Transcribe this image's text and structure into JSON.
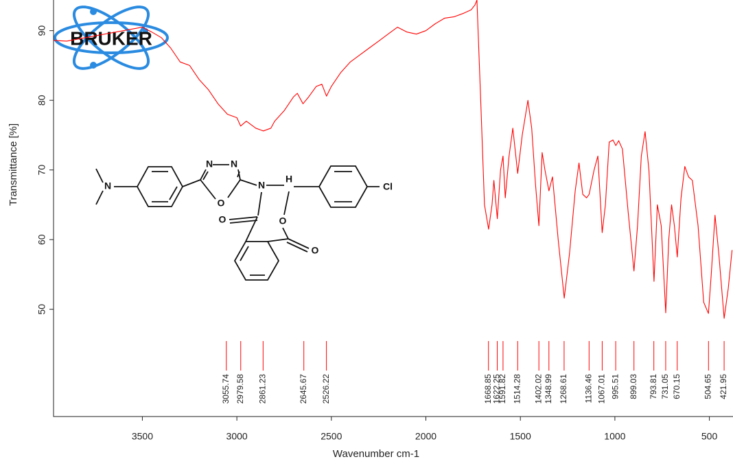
{
  "chart_data": {
    "type": "line",
    "logo": "BRUKER",
    "x_label": "Wavenumber cm-1",
    "y_label": "Transmittance [%]",
    "xlim": [
      3970,
      375
    ],
    "ylim": [
      34.6,
      94.4
    ],
    "xticks": [
      3500,
      3000,
      2500,
      2000,
      1500,
      1000,
      500
    ],
    "yticks": [
      50,
      60,
      70,
      80,
      90
    ],
    "color": "#ff0000",
    "x": [
      3970,
      3900,
      3800,
      3700,
      3600,
      3500,
      3450,
      3400,
      3350,
      3300,
      3250,
      3200,
      3150,
      3100,
      3050,
      3000,
      2980,
      2950,
      2900,
      2860,
      2820,
      2800,
      2750,
      2700,
      2680,
      2650,
      2620,
      2580,
      2550,
      2526,
      2500,
      2450,
      2400,
      2350,
      2300,
      2250,
      2200,
      2150,
      2100,
      2050,
      2000,
      1950,
      1900,
      1850,
      1800,
      1760,
      1740,
      1730,
      1710,
      1690,
      1668,
      1650,
      1640,
      1622,
      1605,
      1592,
      1580,
      1560,
      1540,
      1514,
      1490,
      1460,
      1440,
      1420,
      1402,
      1385,
      1370,
      1349,
      1330,
      1300,
      1268,
      1240,
      1210,
      1190,
      1170,
      1150,
      1136,
      1110,
      1090,
      1067,
      1050,
      1030,
      1010,
      995,
      980,
      960,
      930,
      899,
      880,
      860,
      840,
      820,
      793,
      775,
      755,
      731,
      715,
      700,
      685,
      670,
      650,
      630,
      610,
      590,
      560,
      530,
      505,
      490,
      470,
      450,
      422,
      400,
      380
    ],
    "values": [
      88.6,
      88.5,
      89,
      89.5,
      90,
      90.5,
      89.8,
      89,
      87.5,
      85.5,
      85,
      83,
      81.5,
      79.5,
      78,
      77.5,
      76.3,
      77,
      76,
      75.6,
      76,
      77,
      78.5,
      80.5,
      81,
      79.5,
      80.5,
      82,
      82.3,
      80.6,
      82,
      84,
      85.5,
      86.5,
      87.5,
      88.5,
      89.5,
      90.5,
      89.8,
      89.5,
      90,
      91,
      91.8,
      92,
      92.5,
      93,
      93.7,
      94.4,
      80,
      65,
      61.5,
      65,
      68.5,
      63,
      70,
      72,
      66,
      72,
      76,
      69.5,
      75,
      80,
      76,
      68,
      62,
      72.5,
      70,
      67,
      69,
      60,
      51.6,
      58,
      67,
      71,
      66.5,
      66,
      66.5,
      70,
      72,
      61,
      65,
      74,
      74.3,
      73.5,
      74.2,
      73,
      64,
      55.5,
      62,
      72,
      75.5,
      70,
      54,
      65,
      62,
      49.5,
      60,
      65,
      62,
      57.5,
      66,
      70.5,
      69,
      68.5,
      62,
      51,
      49.4,
      55,
      63.5,
      58,
      48.7,
      53,
      58.5
    ],
    "peaks": [
      3055.74,
      2979.58,
      2861.23,
      2645.67,
      2526.22,
      1668.85,
      1622.25,
      1591.82,
      1514.28,
      1402.02,
      1348.99,
      1268.61,
      1136.46,
      1067.01,
      995.51,
      899.03,
      793.81,
      731.05,
      670.15,
      504.65,
      421.95
    ],
    "annotations": [
      "N",
      "N",
      "N",
      "O",
      "N",
      "H",
      "O",
      "O",
      "O",
      "Cl"
    ]
  }
}
